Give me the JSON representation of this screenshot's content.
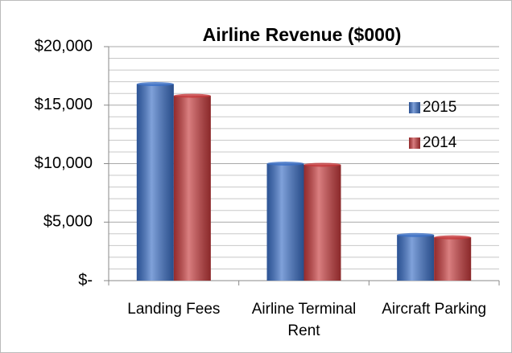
{
  "chart_data": {
    "type": "bar",
    "title": "Airline Revenue ($000)",
    "categories": [
      "Landing Fees",
      "Airline Terminal Rent",
      "Aircraft Parking"
    ],
    "series": [
      {
        "name": "2015",
        "color": "#3b6fc6",
        "values": [
          16800,
          10000,
          3900
        ]
      },
      {
        "name": "2014",
        "color": "#c63a3c",
        "values": [
          15800,
          9900,
          3700
        ]
      }
    ],
    "ylim": [
      0,
      20000
    ],
    "yticks": [
      {
        "value": 0,
        "label": "$-"
      },
      {
        "value": 5000,
        "label": "$5,000"
      },
      {
        "value": 10000,
        "label": "$10,000"
      },
      {
        "value": 15000,
        "label": "$15,000"
      },
      {
        "value": 20000,
        "label": "$20,000"
      }
    ],
    "minor_yticks": [
      1000,
      2000,
      3000,
      4000,
      6000,
      7000,
      8000,
      9000,
      11000,
      12000,
      13000,
      14000,
      16000,
      17000,
      18000,
      19000
    ],
    "grid": true,
    "legend": "right"
  }
}
